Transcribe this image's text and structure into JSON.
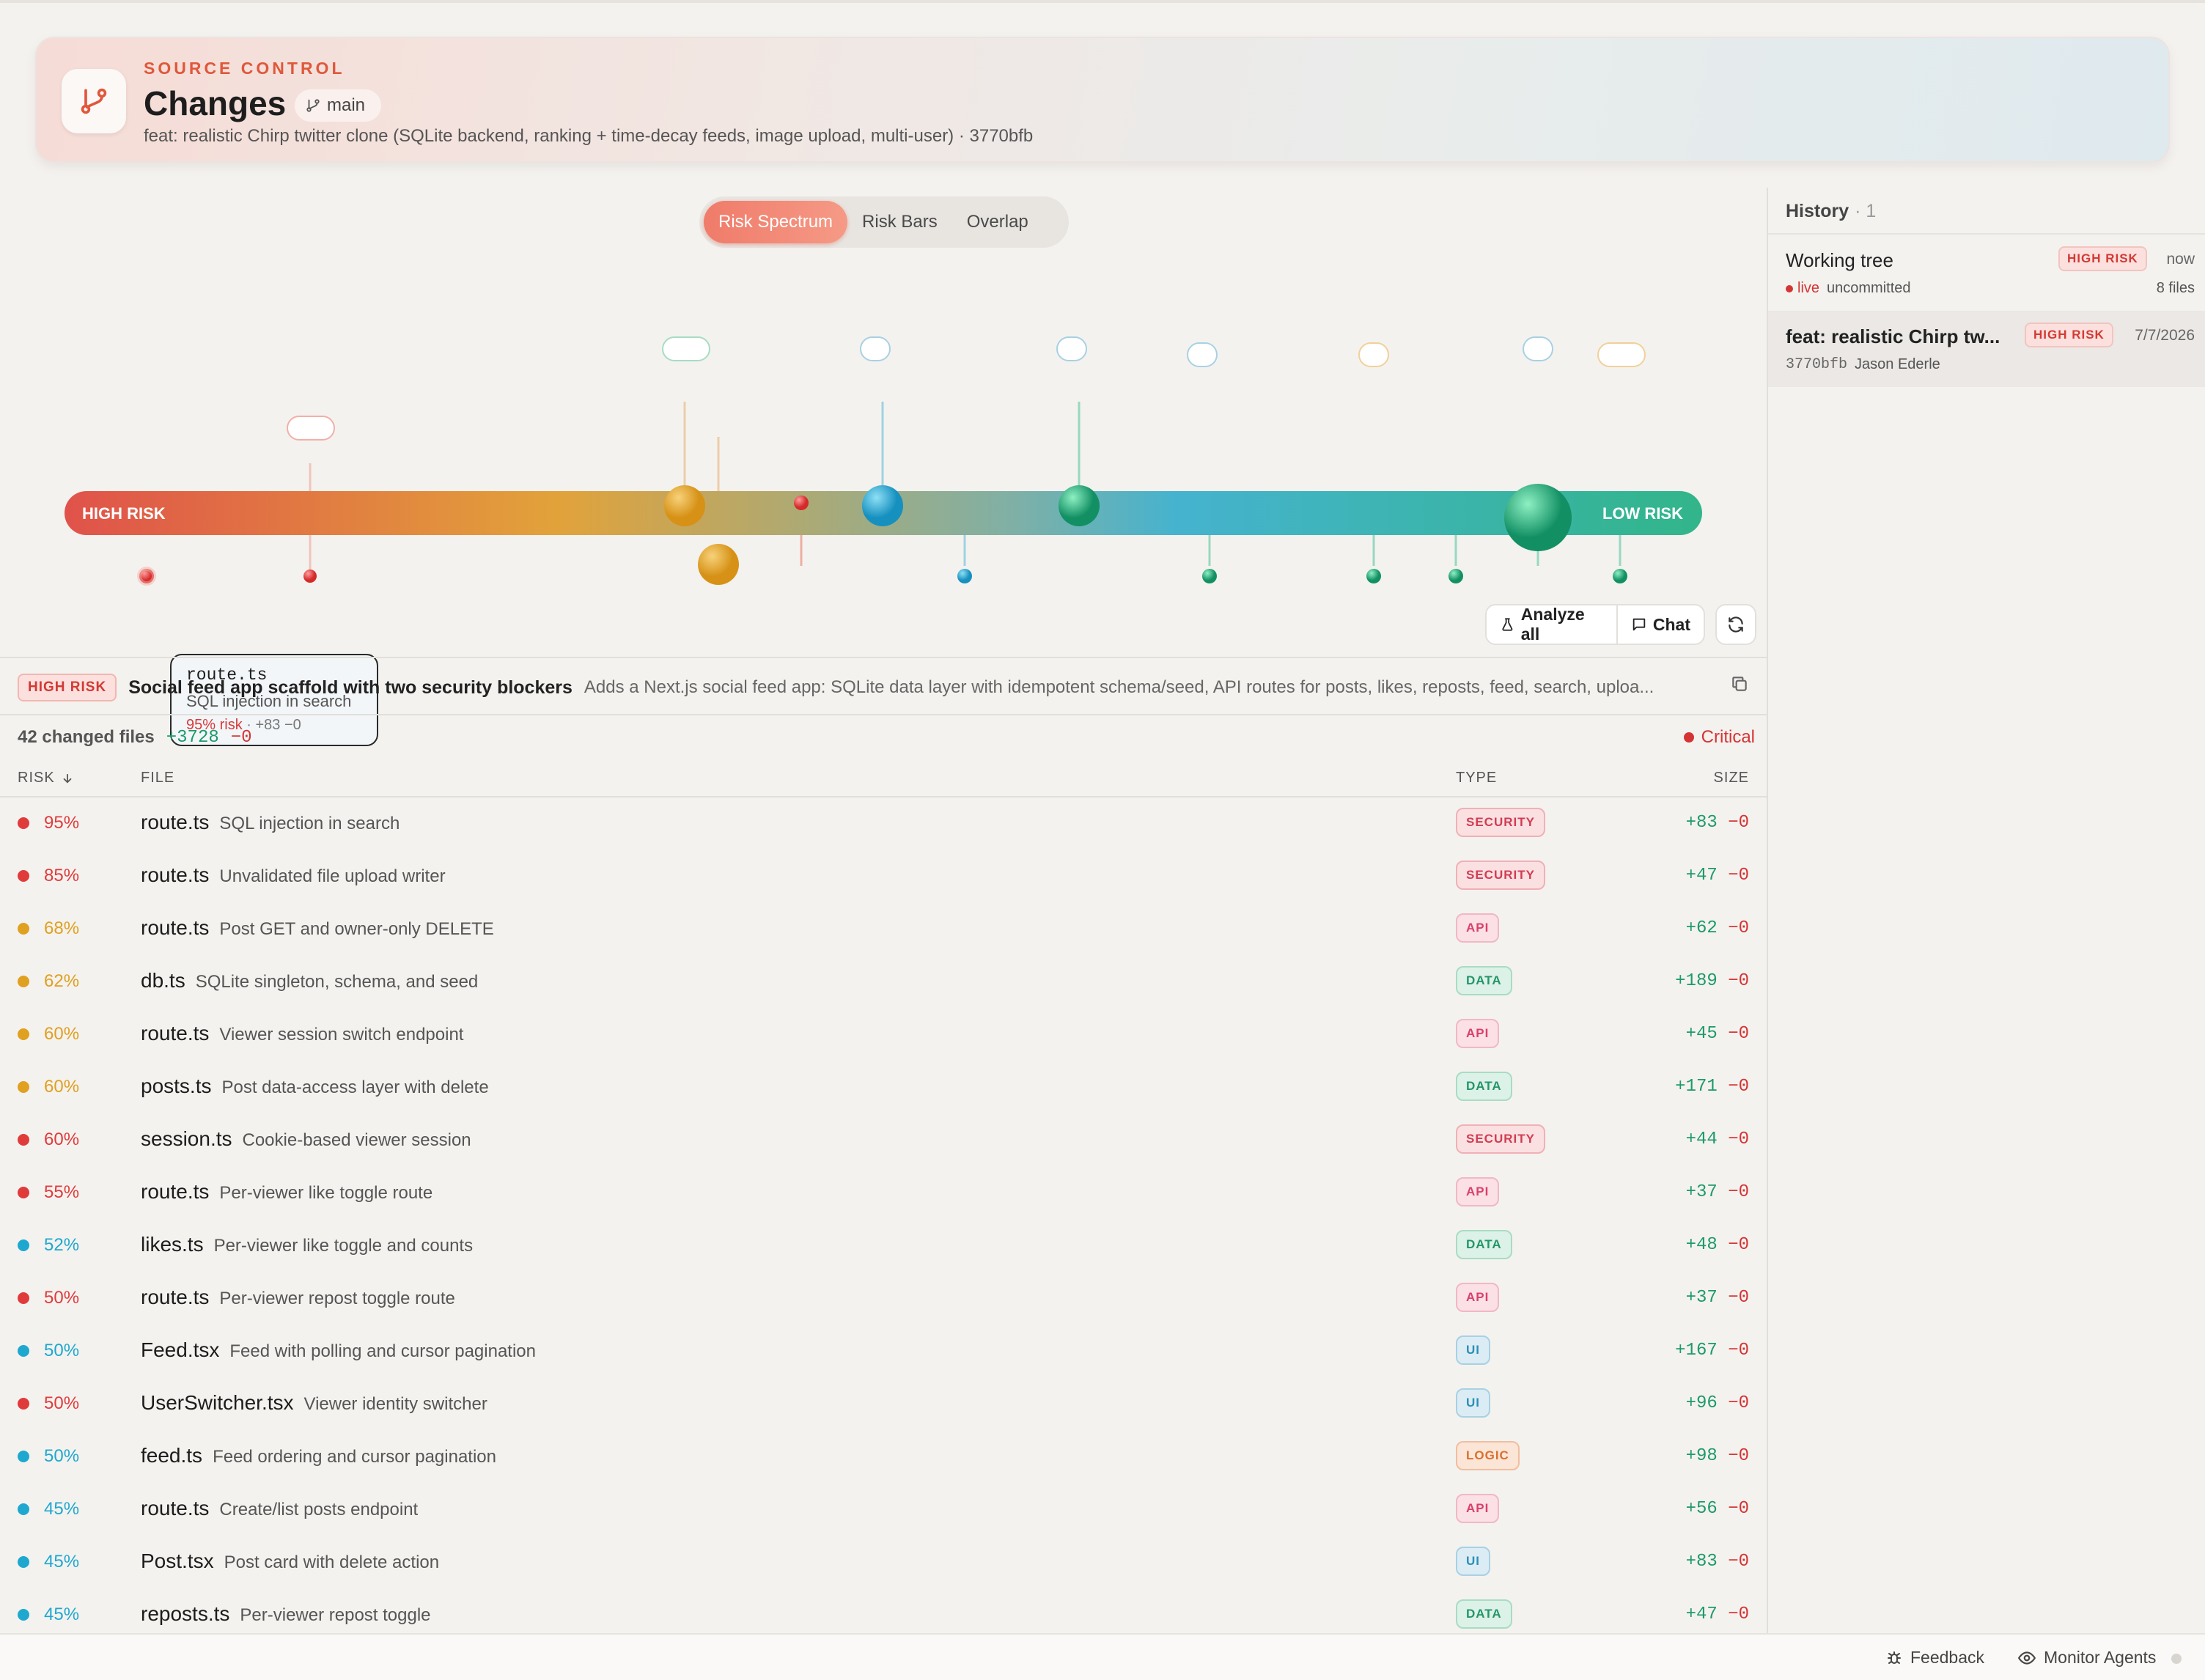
{
  "header": {
    "eyebrow": "SOURCE CONTROL",
    "title": "Changes",
    "branch": "main",
    "commit_line": "feat: realistic Chirp twitter clone (SQLite backend, ranking + time-decay feeds, image upload, multi-user) · 3770bfb",
    "accent": "#e0573b"
  },
  "view_tabs": [
    {
      "label": "Risk Spectrum",
      "active": true
    },
    {
      "label": "Risk Bars",
      "active": false
    },
    {
      "label": "Overlap",
      "active": false
    }
  ],
  "spectrum": {
    "high_label": "HIGH RISK",
    "low_label": "LOW RISK",
    "gradient": [
      "#e0524a",
      "#e2a23a",
      "#45b3cf",
      "#32b58a"
    ]
  },
  "tooltip": {
    "file": "route.ts",
    "desc": "SQL injection in search",
    "risk": "95% risk",
    "size": "· +83 −0"
  },
  "actions": {
    "analyze": "Analyze all",
    "chat": "Chat"
  },
  "summary": {
    "badge": "HIGH RISK",
    "title": "Social feed app scaffold with two security blockers",
    "desc": "Adds a Next.js social feed app: SQLite data layer with idempotent schema/seed, API routes for posts, likes, reposts, feed, search, uploa..."
  },
  "stats": {
    "changed": "42 changed files",
    "added": "+3728",
    "removed": "−0",
    "severity": "Critical"
  },
  "table": {
    "headers": {
      "risk": "RISK",
      "file": "FILE",
      "type": "TYPE",
      "size": "SIZE"
    },
    "rows": [
      {
        "pct": "95%",
        "level": "red",
        "file": "route.ts",
        "desc": "SQL injection in search",
        "type": "SECURITY",
        "add": "+83",
        "del": "−0"
      },
      {
        "pct": "85%",
        "level": "red",
        "file": "route.ts",
        "desc": "Unvalidated file upload writer",
        "type": "SECURITY",
        "add": "+47",
        "del": "−0"
      },
      {
        "pct": "68%",
        "level": "amber",
        "file": "route.ts",
        "desc": "Post GET and owner-only DELETE",
        "type": "API",
        "add": "+62",
        "del": "−0"
      },
      {
        "pct": "62%",
        "level": "amber",
        "file": "db.ts",
        "desc": "SQLite singleton, schema, and seed",
        "type": "DATA",
        "add": "+189",
        "del": "−0"
      },
      {
        "pct": "60%",
        "level": "amber",
        "file": "route.ts",
        "desc": "Viewer session switch endpoint",
        "type": "API",
        "add": "+45",
        "del": "−0"
      },
      {
        "pct": "60%",
        "level": "amber",
        "file": "posts.ts",
        "desc": "Post data-access layer with delete",
        "type": "DATA",
        "add": "+171",
        "del": "−0"
      },
      {
        "pct": "60%",
        "level": "red",
        "file": "session.ts",
        "desc": "Cookie-based viewer session",
        "type": "SECURITY",
        "add": "+44",
        "del": "−0"
      },
      {
        "pct": "55%",
        "level": "red",
        "file": "route.ts",
        "desc": "Per-viewer like toggle route",
        "type": "API",
        "add": "+37",
        "del": "−0"
      },
      {
        "pct": "52%",
        "level": "blue",
        "file": "likes.ts",
        "desc": "Per-viewer like toggle and counts",
        "type": "DATA",
        "add": "+48",
        "del": "−0"
      },
      {
        "pct": "50%",
        "level": "red",
        "file": "route.ts",
        "desc": "Per-viewer repost toggle route",
        "type": "API",
        "add": "+37",
        "del": "−0"
      },
      {
        "pct": "50%",
        "level": "blue",
        "file": "Feed.tsx",
        "desc": "Feed with polling and cursor pagination",
        "type": "UI",
        "add": "+167",
        "del": "−0"
      },
      {
        "pct": "50%",
        "level": "red",
        "file": "UserSwitcher.tsx",
        "desc": "Viewer identity switcher",
        "type": "UI",
        "add": "+96",
        "del": "−0"
      },
      {
        "pct": "50%",
        "level": "blue",
        "file": "feed.ts",
        "desc": "Feed ordering and cursor pagination",
        "type": "LOGIC",
        "add": "+98",
        "del": "−0"
      },
      {
        "pct": "45%",
        "level": "blue",
        "file": "route.ts",
        "desc": "Create/list posts endpoint",
        "type": "API",
        "add": "+56",
        "del": "−0"
      },
      {
        "pct": "45%",
        "level": "blue",
        "file": "Post.tsx",
        "desc": "Post card with delete action",
        "type": "UI",
        "add": "+83",
        "del": "−0"
      },
      {
        "pct": "45%",
        "level": "blue",
        "file": "reposts.ts",
        "desc": "Per-viewer repost toggle",
        "type": "DATA",
        "add": "+47",
        "del": "−0"
      }
    ]
  },
  "history": {
    "title": "History",
    "count": "· 1",
    "items": [
      {
        "title": "Working tree",
        "badge": "HIGH RISK",
        "date": "now",
        "live": "live",
        "sub": "uncommitted",
        "files": "8 files",
        "selected": false
      },
      {
        "title": "feat: realistic Chirp tw...",
        "badge": "HIGH RISK",
        "date": "7/7/2026",
        "hash": "3770bfb",
        "author": "Jason Ederle",
        "selected": true
      }
    ]
  },
  "footer": {
    "feedback": "Feedback",
    "monitor": "Monitor Agents"
  },
  "colors": {
    "red": "#e03b3b",
    "amber": "#e0a020",
    "blue": "#1fa8cf",
    "green": "#1fa873"
  }
}
